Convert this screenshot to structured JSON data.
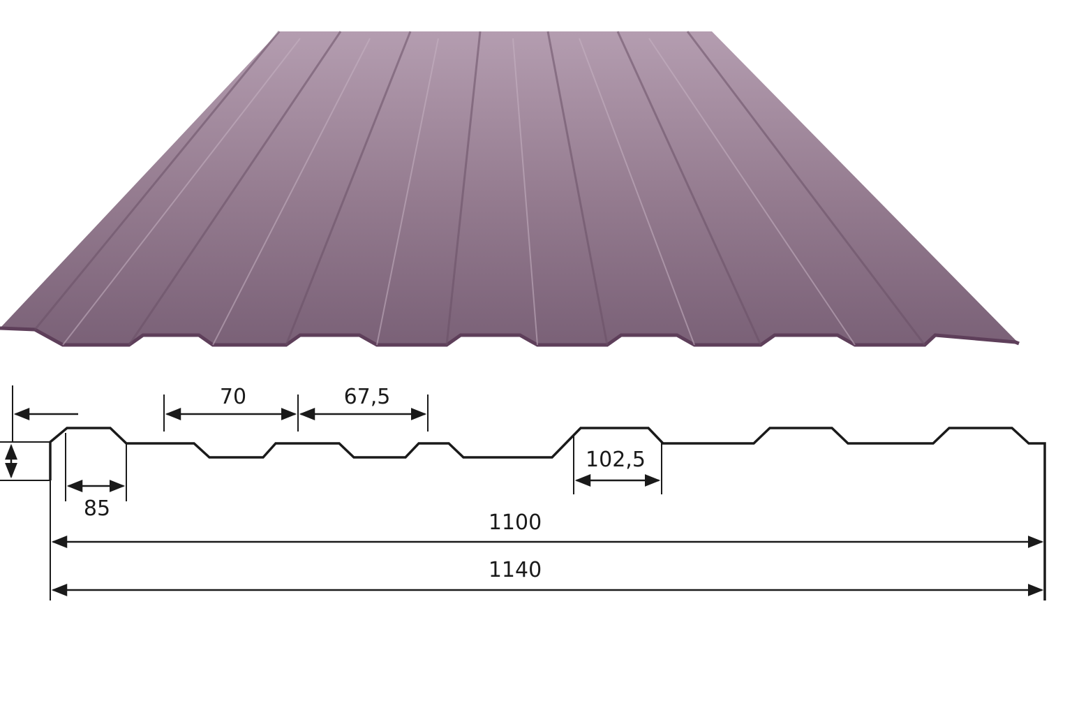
{
  "colors": {
    "sheet_top": "#b49db0",
    "sheet_mid": "#937a8e",
    "sheet_bottom": "#7a6177",
    "sheet_edge": "#5e3f5a",
    "line": "#1a1a1a"
  },
  "dimensions": {
    "rib_spacing": "70",
    "rib_gap": "67,5",
    "top_width": "85",
    "trapezoid_width": "102,5",
    "useful_width": "1100",
    "total_width": "1140"
  }
}
